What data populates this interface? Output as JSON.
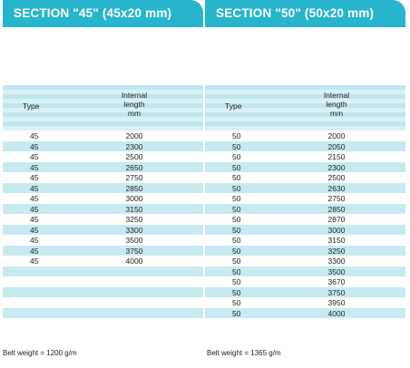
{
  "left": {
    "title": "SECTION \"45\" (45x20 mm)",
    "col_type": "Type",
    "col_length": [
      "Internal",
      "length",
      "mm"
    ],
    "rows": [
      [
        "45",
        "2000"
      ],
      [
        "45",
        "2300"
      ],
      [
        "45",
        "2500"
      ],
      [
        "45",
        "2650"
      ],
      [
        "45",
        "2750"
      ],
      [
        "45",
        "2850"
      ],
      [
        "45",
        "3000"
      ],
      [
        "45",
        "3150"
      ],
      [
        "45",
        "3250"
      ],
      [
        "45",
        "3300"
      ],
      [
        "45",
        "3500"
      ],
      [
        "45",
        "3750"
      ],
      [
        "45",
        "4000"
      ]
    ],
    "belt_weight": "Belt weight = 1200 g/m"
  },
  "right": {
    "title": "SECTION \"50\" (50x20 mm)",
    "col_type": "Type",
    "col_length": [
      "Internal",
      "length",
      "mm"
    ],
    "rows": [
      [
        "50",
        "2000"
      ],
      [
        "50",
        "2050"
      ],
      [
        "50",
        "2150"
      ],
      [
        "50",
        "2300"
      ],
      [
        "50",
        "2500"
      ],
      [
        "50",
        "2630"
      ],
      [
        "50",
        "2750"
      ],
      [
        "50",
        "2850"
      ],
      [
        "50",
        "2870"
      ],
      [
        "50",
        "3000"
      ],
      [
        "50",
        "3150"
      ],
      [
        "50",
        "3250"
      ],
      [
        "50",
        "3300"
      ],
      [
        "50",
        "3500"
      ],
      [
        "50",
        "3670"
      ],
      [
        "50",
        "3750"
      ],
      [
        "50",
        "3950"
      ],
      [
        "50",
        "4000"
      ]
    ],
    "belt_weight": "Belt weight = 1365 g/m"
  }
}
